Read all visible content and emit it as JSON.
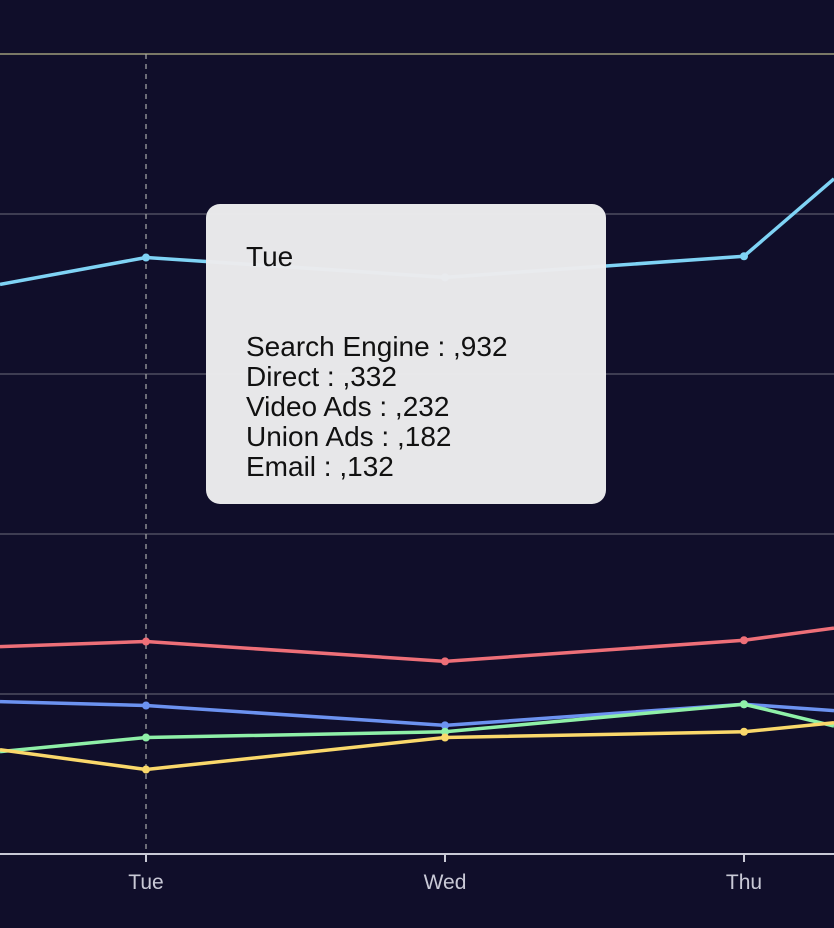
{
  "chart_data": {
    "type": "line",
    "categories": [
      "Tue",
      "Wed",
      "Thu"
    ],
    "ylim": [
      0,
      1250
    ],
    "grid": true,
    "series": [
      {
        "name": "Search Engine",
        "values": [
          932,
          901,
          934
        ],
        "color": "#7fd3f5"
      },
      {
        "name": "Direct",
        "values": [
          332,
          301,
          334
        ],
        "color": "#ee6f78"
      },
      {
        "name": "Video Ads",
        "values": [
          232,
          201,
          234
        ],
        "color": "#6c92f0"
      },
      {
        "name": "Union Ads",
        "values": [
          182,
          191,
          234
        ],
        "color": "#8ff0a8"
      },
      {
        "name": "Email",
        "values": [
          132,
          182,
          191
        ],
        "color": "#fad86b"
      }
    ],
    "edge_values": {
      "left": {
        "Search Engine": 890,
        "Direct": 324,
        "Video Ads": 238,
        "Union Ads": 160,
        "Email": 163
      },
      "right": {
        "Search Engine": 1055,
        "Direct": 353,
        "Video Ads": 224,
        "Union Ads": 200,
        "Email": 205
      }
    }
  },
  "tooltip": {
    "title": "Tue",
    "rows": [
      "Search Engine : ,932",
      "Direct : ,332",
      "Video Ads : ,232",
      "Union Ads : ,182",
      "Email : ,132"
    ]
  },
  "colors": {
    "background": "#100e2a",
    "grid": "#5a5a6a",
    "axis": "#c9c9d6",
    "pointer": "#aaaaaa"
  }
}
